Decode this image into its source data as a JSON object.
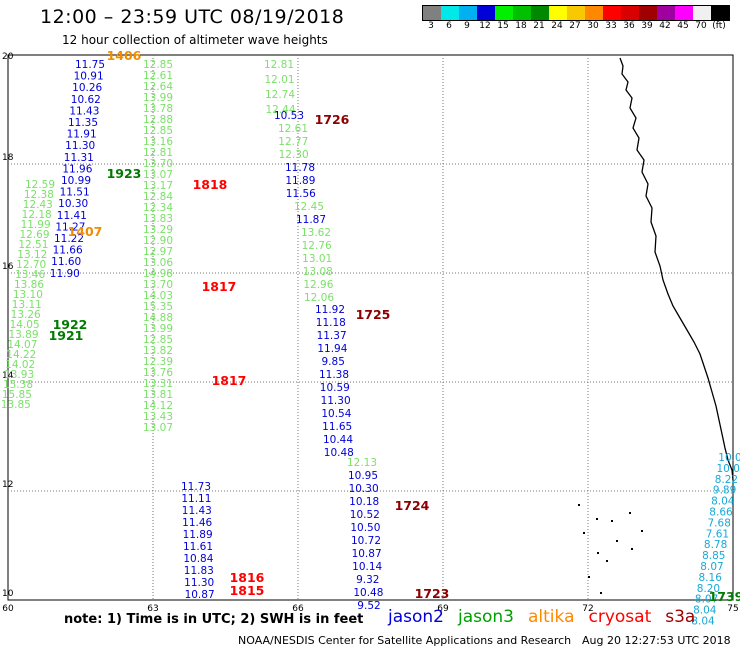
{
  "title": "12:00 – 23:59 UTC 08/19/2018",
  "subtitle": "12 hour collection of altimeter wave heights",
  "colorbar": {
    "colors": [
      "#808080",
      "#00e8e8",
      "#00b0f0",
      "#0000d8",
      "#00f000",
      "#00c000",
      "#008800",
      "#ffff00",
      "#f8c800",
      "#ff8800",
      "#ff0000",
      "#d80000",
      "#a00000",
      "#a000a0",
      "#ff00ff",
      "#f0f0f0",
      "#000000"
    ],
    "labels": [
      "3",
      "6",
      "9",
      "12",
      "15",
      "18",
      "21",
      "24",
      "27",
      "30",
      "33",
      "36",
      "39",
      "42",
      "45",
      "70",
      "(ft)"
    ]
  },
  "axes": {
    "lon_ticks": [
      "60",
      "63",
      "66",
      "69",
      "72",
      "75"
    ],
    "lat_ticks": [
      "20",
      "18",
      "16",
      "14",
      "12",
      "10"
    ]
  },
  "tracks": [
    {
      "sat": "jason2",
      "values": [
        "11.75",
        "10.91",
        "10.26",
        "10.62",
        "11.43",
        "11.35",
        "11.91",
        "11.30",
        "11.31",
        "11.96",
        "10.99",
        "11.51",
        "10.30",
        "11.41",
        "11.27",
        "11.22",
        "11.66",
        "11.60",
        "11.90"
      ]
    },
    {
      "sat": "jason3",
      "values": [
        "12.59",
        "12.38",
        "12.43",
        "12.18",
        "11.99",
        "12.69",
        "12.51",
        "13.12",
        "12.70",
        "13.46",
        "13.86",
        "13.10",
        "13.11",
        "13.26",
        "14.05",
        "13.89",
        "14.07",
        "14.22",
        "14.02",
        "13.93",
        "15.38",
        "15.85",
        "13.85"
      ]
    },
    {
      "sat": "jason3",
      "values": [
        "12.85",
        "12.61",
        "12.64",
        "13.99",
        "13.78",
        "12.88",
        "12.85",
        "13.16",
        "12.81",
        "13.70",
        "13.07",
        "13.17",
        "12.84",
        "12.34",
        "13.83",
        "13.29",
        "12.90",
        "12.97",
        "13.06",
        "14.98",
        "13.70",
        "14.03",
        "15.35",
        "14.88",
        "13.99",
        "12.85",
        "13.82",
        "12.39",
        "13.76",
        "13.31",
        "13.81",
        "14.12",
        "13.43",
        "13.07"
      ]
    },
    {
      "sat": "jason2",
      "values": [
        "11.73",
        "11.11",
        "11.43",
        "11.46",
        "11.89",
        "11.61",
        "10.84",
        "11.83",
        "11.30",
        "10.87"
      ]
    },
    {
      "sat": "jason3",
      "values": [
        "12.81",
        "12.01",
        "12.74",
        "12.44"
      ]
    },
    {
      "sat": "jason2",
      "values": [
        "10.53"
      ]
    },
    {
      "sat": "jason3",
      "values": [
        "12.61",
        "12.77",
        "12.30"
      ]
    },
    {
      "sat": "jason2",
      "values": [
        "11.78",
        "11.89",
        "11.56"
      ]
    },
    {
      "sat": "jason3",
      "values": [
        "12.45"
      ]
    },
    {
      "sat": "jason2",
      "values": [
        "11.87"
      ]
    },
    {
      "sat": "jason3",
      "values": [
        "13.62",
        "12.76",
        "13.01",
        "13.08",
        "12.96",
        "12.06"
      ]
    },
    {
      "sat": "jason2",
      "values": [
        "11.92",
        "11.18",
        "11.37",
        "11.94",
        "9.85",
        "11.38",
        "10.59",
        "11.30",
        "10.54",
        "11.65",
        "10.44",
        "10.48"
      ]
    },
    {
      "sat": "jason3",
      "values": [
        "12.13"
      ]
    },
    {
      "sat": "jason2",
      "values": [
        "10.95",
        "10.30",
        "10.18",
        "10.52",
        "10.50",
        "10.72",
        "10.87",
        "10.14",
        "9.32",
        "10.48",
        "9.52"
      ]
    },
    {
      "sat": "s3a",
      "values": [
        "10.0",
        "10.0",
        "8.22",
        "9.89",
        "8.04",
        "8.66",
        "7.68",
        "7.61",
        "8.78",
        "8.85",
        "8.07",
        "8.16",
        "8.20",
        "8.07",
        "8.04",
        "8.04"
      ]
    }
  ],
  "time_labels": [
    {
      "t": "1406",
      "sat": "altika"
    },
    {
      "t": "1726",
      "sat": "s3a"
    },
    {
      "t": "1923",
      "sat": "jason3"
    },
    {
      "t": "1818",
      "sat": "cryosat"
    },
    {
      "t": "1407",
      "sat": "altika"
    },
    {
      "t": "1817",
      "sat": "cryosat"
    },
    {
      "t": "1725",
      "sat": "s3a"
    },
    {
      "t": "1922",
      "sat": "jason3"
    },
    {
      "t": "1921",
      "sat": "jason3"
    },
    {
      "t": "1817",
      "sat": "cryosat"
    },
    {
      "t": "1724",
      "sat": "s3a"
    },
    {
      "t": "1816",
      "sat": "cryosat"
    },
    {
      "t": "1815",
      "sat": "cryosat"
    },
    {
      "t": "1723",
      "sat": "s3a"
    },
    {
      "t": "1739",
      "sat": "jason3"
    }
  ],
  "note": "note: 1) Time is in UTC; 2) SWH is in feet",
  "legend": [
    {
      "name": "jason2",
      "color": "#0000d8"
    },
    {
      "name": "jason3",
      "color": "#00a000"
    },
    {
      "name": "altika",
      "color": "#ff8800"
    },
    {
      "name": "cryosat",
      "color": "#ff0000"
    },
    {
      "name": "s3a",
      "color": "#a00000"
    }
  ],
  "credit": "NOAA/NESDIS Center for Satellite Applications and Research",
  "stamp": "Aug 20 12:27:53 UTC 2018"
}
